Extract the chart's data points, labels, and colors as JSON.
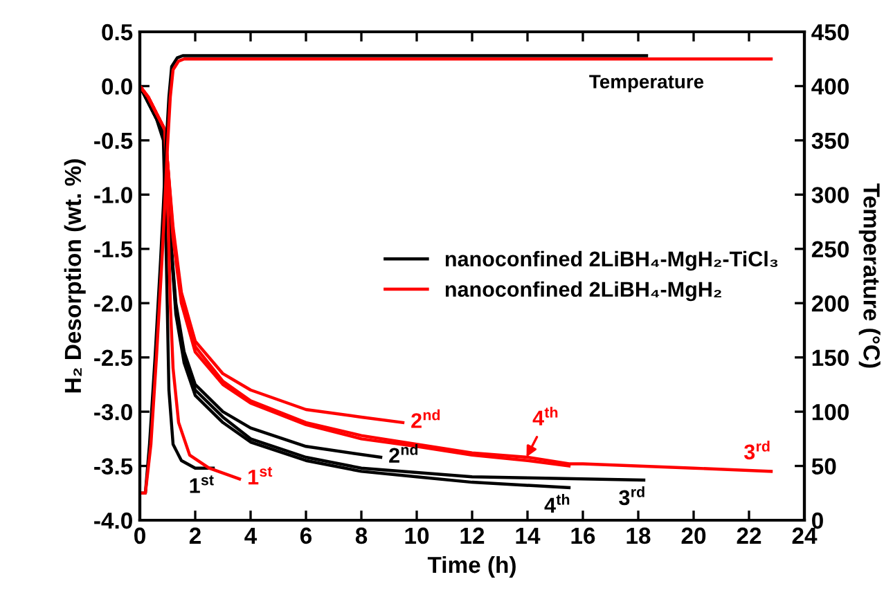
{
  "chart_data": {
    "type": "line",
    "xlabel": "Time (h)",
    "ylabel": "H₂ Desorption (wt. %)",
    "y2label": "Temperature (°C)",
    "xlim": [
      0,
      24
    ],
    "xticks": [
      0,
      2,
      4,
      6,
      8,
      10,
      12,
      14,
      16,
      18,
      20,
      22,
      24
    ],
    "ylim": [
      -4.0,
      0.5
    ],
    "yticks": [
      {
        "value": -4.0,
        "label": "-4.0"
      },
      {
        "value": -3.5,
        "label": "-3.5"
      },
      {
        "value": -3.0,
        "label": "-3.0"
      },
      {
        "value": -2.5,
        "label": "-2.5"
      },
      {
        "value": -2.0,
        "label": "-2.0"
      },
      {
        "value": -1.5,
        "label": "-1.5"
      },
      {
        "value": -1.0,
        "label": "-1.0"
      },
      {
        "value": -0.5,
        "label": "-0.5"
      },
      {
        "value": 0.0,
        "label": "0.0"
      },
      {
        "value": 0.5,
        "label": "0.5"
      }
    ],
    "y2lim": [
      0,
      450
    ],
    "y2ticks": [
      0,
      50,
      100,
      150,
      200,
      250,
      300,
      350,
      400,
      450
    ],
    "legend": "right",
    "grid": false,
    "marker": "none",
    "line_style": "solid",
    "series": [
      {
        "name": "nanoconfined 2LiBH₄-MgH₂-TiCl₃",
        "color": "#000000",
        "x": [
          0,
          0.3,
          0.6,
          0.85,
          0.95,
          1.05,
          1.2,
          1.5,
          2.0,
          2.65
        ],
        "values": [
          0,
          -0.15,
          -0.3,
          -0.5,
          -1.5,
          -2.8,
          -3.3,
          -3.45,
          -3.52,
          -3.52
        ]
      },
      {
        "color": "#000000",
        "x": [
          0,
          0.3,
          0.6,
          0.9,
          1.05,
          1.3,
          1.6,
          2,
          3,
          4,
          6,
          8.7
        ],
        "values": [
          0,
          -0.15,
          -0.3,
          -0.45,
          -1.2,
          -2.0,
          -2.45,
          -2.75,
          -3.0,
          -3.15,
          -3.32,
          -3.42
        ]
      },
      {
        "color": "#000000",
        "x": [
          0,
          0.3,
          0.6,
          0.9,
          1.05,
          1.3,
          1.6,
          2,
          3,
          4,
          6,
          8,
          10,
          12,
          14,
          18.2
        ],
        "values": [
          0,
          -0.15,
          -0.3,
          -0.45,
          -1.2,
          -2.05,
          -2.5,
          -2.8,
          -3.05,
          -3.25,
          -3.42,
          -3.52,
          -3.56,
          -3.6,
          -3.61,
          -3.63
        ]
      },
      {
        "color": "#000000",
        "x": [
          0,
          0.3,
          0.6,
          0.9,
          1.05,
          1.3,
          1.6,
          2,
          3,
          4,
          6,
          8,
          10,
          12,
          15.5
        ],
        "values": [
          0,
          -0.15,
          -0.3,
          -0.45,
          -1.2,
          -2.1,
          -2.55,
          -2.85,
          -3.1,
          -3.28,
          -3.45,
          -3.55,
          -3.6,
          -3.65,
          -3.7
        ]
      },
      {
        "name": "nanoconfined 2LiBH₄-MgH₂",
        "color": "#ff0000",
        "x": [
          0,
          0.3,
          0.6,
          0.9,
          1.0,
          1.1,
          1.2,
          1.4,
          1.8,
          2.5,
          3.6
        ],
        "values": [
          0,
          -0.1,
          -0.25,
          -0.4,
          -1.0,
          -2.0,
          -2.6,
          -3.1,
          -3.4,
          -3.52,
          -3.62
        ]
      },
      {
        "color": "#ff0000",
        "x": [
          0,
          0.3,
          0.6,
          0.9,
          1.0,
          1.2,
          1.5,
          2,
          3,
          4,
          6,
          8,
          9.5
        ],
        "values": [
          0,
          -0.1,
          -0.25,
          -0.4,
          -0.7,
          -1.3,
          -1.9,
          -2.35,
          -2.65,
          -2.8,
          -2.98,
          -3.05,
          -3.1
        ]
      },
      {
        "color": "#ff0000",
        "x": [
          0,
          0.3,
          0.6,
          0.9,
          1.0,
          1.2,
          1.5,
          2,
          3,
          4,
          6,
          8,
          10,
          12,
          14,
          15.5,
          16,
          20,
          22.8
        ],
        "values": [
          0,
          -0.1,
          -0.25,
          -0.4,
          -0.7,
          -1.35,
          -1.95,
          -2.4,
          -2.72,
          -2.9,
          -3.1,
          -3.22,
          -3.3,
          -3.38,
          -3.42,
          -3.48,
          -3.48,
          -3.52,
          -3.55
        ]
      },
      {
        "color": "#ff0000",
        "x": [
          0,
          0.3,
          0.6,
          0.9,
          1.0,
          1.2,
          1.5,
          2,
          3,
          4,
          6,
          8,
          10,
          12,
          14,
          15.5
        ],
        "values": [
          0,
          -0.1,
          -0.25,
          -0.4,
          -0.7,
          -1.4,
          -2.0,
          -2.45,
          -2.75,
          -2.92,
          -3.12,
          -3.25,
          -3.32,
          -3.4,
          -3.45,
          -3.5
        ]
      },
      {
        "color": "#000000",
        "axis": "y2",
        "x": [
          0.1,
          0.2,
          0.35,
          0.55,
          0.75,
          0.85,
          0.95,
          1.05,
          1.15,
          1.35,
          1.55,
          3,
          18.3
        ],
        "values": [
          25,
          25,
          70,
          150,
          240,
          290,
          345,
          390,
          418,
          426,
          428,
          428,
          428
        ]
      },
      {
        "color": "#ff0000",
        "axis": "y2",
        "x": [
          0.1,
          0.2,
          0.4,
          0.6,
          0.8,
          0.9,
          1.0,
          1.1,
          1.2,
          1.4,
          1.6,
          3,
          22.8
        ],
        "values": [
          25,
          25,
          70,
          150,
          240,
          290,
          345,
          390,
          415,
          423,
          425,
          425,
          425
        ]
      }
    ],
    "annotations": [
      {
        "text": "1$^{st}$",
        "x": 2.65,
        "y": -3.52
      },
      {
        "text": "2$^{nd}$",
        "x": 8.7,
        "y": -3.42
      },
      {
        "text": "3$^{rd}$",
        "x": 18.2,
        "y": -3.63
      },
      {
        "text": "4$^{th}$",
        "x": 15.5,
        "y": -3.7
      },
      {
        "text": "1$^{st}$",
        "x": 3.6,
        "y": -3.62
      },
      {
        "text": "2$^{nd}$",
        "x": 9.5,
        "y": -3.1
      },
      {
        "text": "3$^{rd}$",
        "x": 22.8,
        "y": -3.55
      },
      {
        "text": "4$^{th}$",
        "x": 13.9,
        "y": -3.45
      },
      {
        "text": "Temperature",
        "x": 18.3,
        "y": 0.25
      }
    ]
  }
}
